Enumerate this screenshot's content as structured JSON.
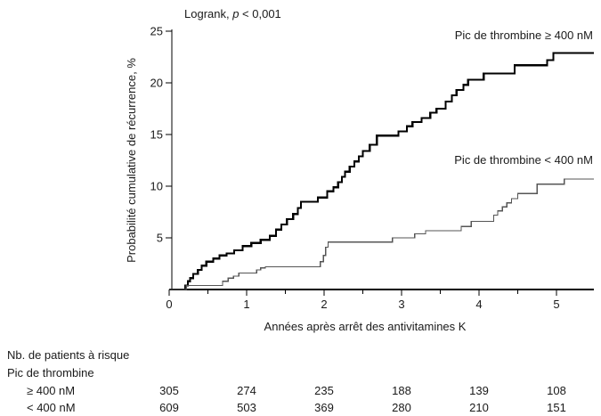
{
  "title": {
    "prefix": "Logrank, ",
    "italic_p": "p",
    "suffix": " < 0,001"
  },
  "chart_data": {
    "type": "line",
    "subtype": "kaplan-meier-cumulative-incidence-steps",
    "title": "Logrank, p < 0,001",
    "xlabel": "Années après arrêt des antivitamines K",
    "ylabel": "Probabilité cumulative de récurrence, %",
    "xlim": [
      0,
      5.5
    ],
    "ylim": [
      0,
      25
    ],
    "x_ticks": [
      0,
      1,
      2,
      3,
      4,
      5
    ],
    "x_minor_ticks": [
      0.5,
      1.5,
      2.5,
      3.5,
      4.5
    ],
    "y_ticks": [
      5,
      10,
      15,
      20,
      25
    ],
    "grid": "off",
    "legend_position": "inline-labels",
    "series": [
      {
        "name": "Pic de thrombine ≥ 400 nM",
        "color": "#000000",
        "stroke_width": 2.2,
        "points_years_pct": [
          [
            0.0,
            0
          ],
          [
            0.21,
            0.4
          ],
          [
            0.24,
            0.8
          ],
          [
            0.27,
            1.1
          ],
          [
            0.31,
            1.5
          ],
          [
            0.37,
            1.9
          ],
          [
            0.42,
            2.3
          ],
          [
            0.48,
            2.7
          ],
          [
            0.57,
            3.0
          ],
          [
            0.65,
            3.3
          ],
          [
            0.74,
            3.5
          ],
          [
            0.84,
            3.8
          ],
          [
            0.95,
            4.2
          ],
          [
            1.06,
            4.5
          ],
          [
            1.18,
            4.8
          ],
          [
            1.3,
            5.2
          ],
          [
            1.38,
            5.8
          ],
          [
            1.45,
            6.3
          ],
          [
            1.52,
            6.8
          ],
          [
            1.6,
            7.3
          ],
          [
            1.66,
            7.9
          ],
          [
            1.7,
            8.5
          ],
          [
            1.92,
            8.9
          ],
          [
            2.04,
            9.5
          ],
          [
            2.12,
            9.9
          ],
          [
            2.18,
            10.4
          ],
          [
            2.23,
            10.9
          ],
          [
            2.27,
            11.4
          ],
          [
            2.33,
            11.9
          ],
          [
            2.39,
            12.4
          ],
          [
            2.45,
            12.9
          ],
          [
            2.5,
            13.4
          ],
          [
            2.59,
            14.0
          ],
          [
            2.68,
            14.9
          ],
          [
            2.96,
            15.3
          ],
          [
            3.07,
            15.8
          ],
          [
            3.14,
            16.2
          ],
          [
            3.26,
            16.6
          ],
          [
            3.37,
            17.1
          ],
          [
            3.45,
            17.5
          ],
          [
            3.57,
            18.2
          ],
          [
            3.65,
            18.8
          ],
          [
            3.71,
            19.3
          ],
          [
            3.8,
            19.8
          ],
          [
            3.86,
            20.3
          ],
          [
            4.06,
            20.9
          ],
          [
            4.46,
            21.7
          ],
          [
            4.88,
            22.2
          ],
          [
            4.96,
            22.9
          ],
          [
            5.48,
            22.9
          ]
        ]
      },
      {
        "name": "Pic de thrombine < 400 nM",
        "color": "#555555",
        "stroke_width": 1.3,
        "points_years_pct": [
          [
            0.0,
            0
          ],
          [
            0.22,
            0.4
          ],
          [
            0.69,
            0.8
          ],
          [
            0.76,
            1.1
          ],
          [
            0.83,
            1.3
          ],
          [
            0.9,
            1.6
          ],
          [
            1.13,
            1.9
          ],
          [
            1.18,
            2.1
          ],
          [
            1.24,
            2.2
          ],
          [
            1.95,
            2.7
          ],
          [
            1.99,
            3.3
          ],
          [
            2.02,
            4.1
          ],
          [
            2.05,
            4.6
          ],
          [
            2.88,
            5.0
          ],
          [
            3.17,
            5.4
          ],
          [
            3.31,
            5.7
          ],
          [
            3.77,
            6.1
          ],
          [
            3.9,
            6.6
          ],
          [
            4.19,
            7.2
          ],
          [
            4.24,
            7.6
          ],
          [
            4.3,
            8.0
          ],
          [
            4.36,
            8.4
          ],
          [
            4.42,
            8.8
          ],
          [
            4.5,
            9.3
          ],
          [
            4.75,
            10.2
          ],
          [
            5.1,
            10.7
          ],
          [
            5.48,
            10.7
          ]
        ]
      }
    ]
  },
  "annotations": {
    "series_ge_label": "Pic de thrombine ≥ 400 nM",
    "series_lt_label": "Pic de thrombine < 400 nM"
  },
  "axes": {
    "x_label": "Années après arrêt des antivitamines K",
    "y_label": "Probabilité cumulative de récurrence, %"
  },
  "risk_table": {
    "header": "Nb. de patients à risque",
    "subheader": "Pic de thrombine",
    "rows": [
      {
        "label": "≥ 400 nM",
        "values": [
          "305",
          "274",
          "235",
          "188",
          "139",
          "108"
        ]
      },
      {
        "label": "< 400 nM",
        "values": [
          "609",
          "503",
          "369",
          "280",
          "210",
          "151"
        ]
      }
    ]
  }
}
